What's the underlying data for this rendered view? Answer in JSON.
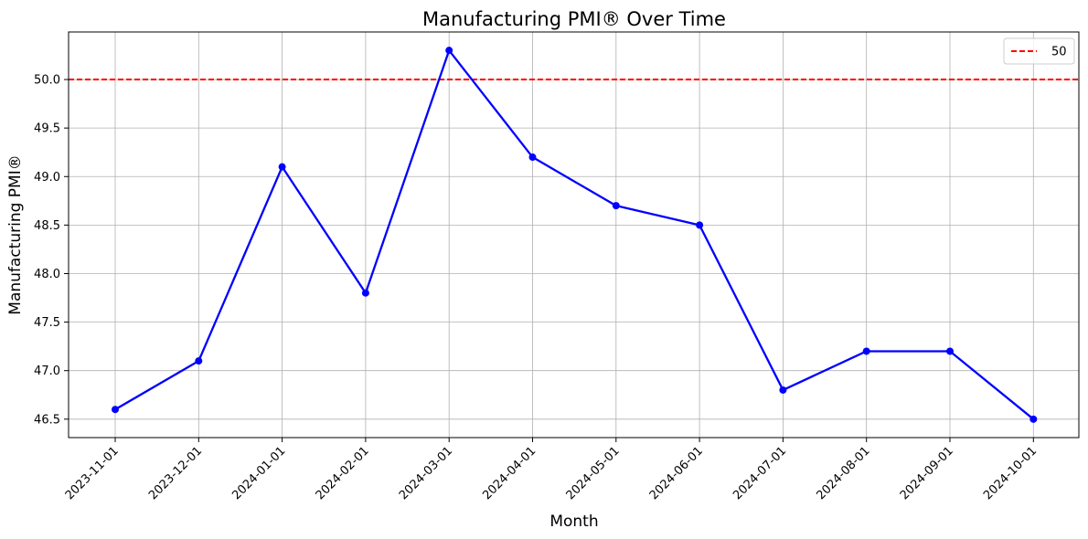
{
  "chart_data": {
    "type": "line",
    "title": "Manufacturing PMI® Over Time",
    "xlabel": "Month",
    "ylabel": "Manufacturing PMI®",
    "categories": [
      "2023-11-01",
      "2023-12-01",
      "2024-01-01",
      "2024-02-01",
      "2024-03-01",
      "2024-04-01",
      "2024-05-01",
      "2024-06-01",
      "2024-07-01",
      "2024-08-01",
      "2024-09-01",
      "2024-10-01"
    ],
    "series": [
      {
        "values": [
          46.6,
          47.1,
          49.1,
          47.8,
          50.3,
          49.2,
          48.7,
          48.5,
          46.8,
          47.2,
          47.2,
          46.5
        ],
        "color": "#0000ff"
      }
    ],
    "reference_line": {
      "y": 50,
      "label": "50",
      "color": "#ff0000",
      "style": "dashed"
    },
    "yticks": [
      "46.5",
      "47.0",
      "47.5",
      "48.0",
      "48.5",
      "49.0",
      "49.5",
      "50.0"
    ],
    "ylim": [
      46.31,
      50.49
    ],
    "grid": true,
    "legend_position": "top-right"
  }
}
